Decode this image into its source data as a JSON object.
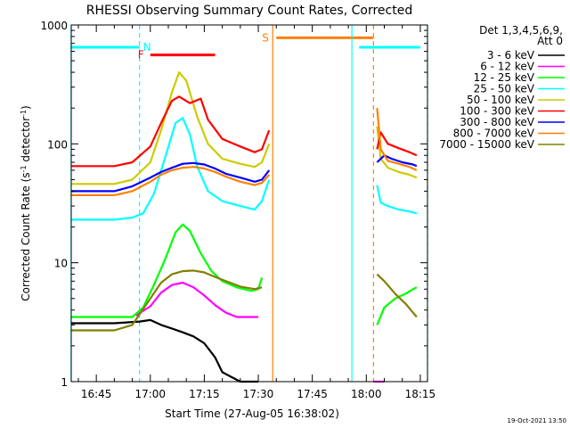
{
  "chart_data": {
    "type": "line",
    "title": "RHESSI Observing Summary Count Rates, Corrected",
    "xlabel": "Start Time (27-Aug-05 16:38:02)",
    "ylabel": "Corrected Count Rate (s⁻¹ detector⁻¹)",
    "ylabel_main": "Corrected Count Rate (s",
    "ylabel_sup1": "-1",
    "ylabel_mid": " detector",
    "ylabel_sup2": "-1",
    "ylabel_end": ")",
    "y_scale": "log",
    "ylim": [
      1,
      1000
    ],
    "xlim": [
      "16:38:02",
      "18:17:00"
    ],
    "x_tick_labels": [
      "16:45",
      "17:00",
      "17:15",
      "17:30",
      "17:45",
      "18:00",
      "18:15"
    ],
    "y_tick_labels": [
      "1",
      "10",
      "100",
      "1000"
    ],
    "legend_header": [
      "Det 1,3,4,5,6,9,",
      "Att 0"
    ],
    "legend_position": "top-right outside plot",
    "timestamp": "19-Oct-2021 13:50",
    "data_gaps": [
      [
        "17:34",
        "17:56"
      ],
      [
        "18:00",
        "18:03"
      ]
    ],
    "annotations": [
      {
        "label": "N",
        "kind": "night",
        "color": "#00ffff"
      },
      {
        "label": "F",
        "kind": "flare",
        "color": "#ff0000"
      },
      {
        "label": "S",
        "kind": "SAA",
        "color": "#ff8000"
      }
    ],
    "bars": [
      {
        "label": "N",
        "start": "16:38",
        "end": "16:57",
        "level": 650,
        "color": "#00ffff"
      },
      {
        "label": "N",
        "start": "17:58",
        "end": "18:15",
        "level": 650,
        "color": "#00ffff"
      },
      {
        "label": "F",
        "start": "17:00",
        "end": "17:18",
        "level": 560,
        "color": "#ff0000"
      },
      {
        "label": "S",
        "start": "17:35",
        "end": "18:02",
        "level": 780,
        "color": "#ff8000"
      }
    ],
    "vlines": [
      {
        "t": "16:38",
        "color": "#00ffff",
        "style": "solid"
      },
      {
        "t": "16:57",
        "color": "#00ffff",
        "style": "dashed"
      },
      {
        "t": "17:34",
        "color": "#ff8000",
        "style": "solid"
      },
      {
        "t": "17:56",
        "color": "#00ffff",
        "style": "solid"
      },
      {
        "t": "18:02",
        "color": "#ff8000",
        "style": "dashed"
      },
      {
        "t": "18:17",
        "color": "#00ffff",
        "style": "dashed"
      }
    ],
    "series": [
      {
        "name": "3 - 6 keV",
        "color": "#000000",
        "segments": [
          [
            [
              "16:38",
              3.1
            ],
            [
              "16:50",
              3.1
            ],
            [
              "16:57",
              3.2
            ],
            [
              "17:00",
              3.3
            ],
            [
              "17:03",
              3.0
            ],
            [
              "17:06",
              2.8
            ],
            [
              "17:09",
              2.6
            ],
            [
              "17:12",
              2.4
            ],
            [
              "17:15",
              2.1
            ],
            [
              "17:18",
              1.6
            ],
            [
              "17:20",
              1.2
            ],
            [
              "17:25",
              1.0
            ],
            [
              "17:30",
              1.0
            ]
          ]
        ]
      },
      {
        "name": "6 - 12 keV",
        "color": "#ff00ff",
        "segments": [
          [
            [
              "16:56",
              3.6
            ],
            [
              "17:00",
              4.3
            ],
            [
              "17:03",
              5.6
            ],
            [
              "17:06",
              6.5
            ],
            [
              "17:09",
              6.8
            ],
            [
              "17:12",
              6.2
            ],
            [
              "17:15",
              5.3
            ],
            [
              "17:18",
              4.4
            ],
            [
              "17:21",
              3.8
            ],
            [
              "17:24",
              3.5
            ],
            [
              "17:30",
              3.5
            ]
          ],
          [
            [
              "18:02",
              1.0
            ],
            [
              "18:05",
              1.0
            ]
          ]
        ]
      },
      {
        "name": "12 - 25 keV",
        "color": "#00ff00",
        "segments": [
          [
            [
              "16:38",
              3.5
            ],
            [
              "16:55",
              3.5
            ],
            [
              "16:58",
              4.2
            ],
            [
              "17:01",
              6.5
            ],
            [
              "17:04",
              10.5
            ],
            [
              "17:07",
              18.0
            ],
            [
              "17:09",
              21.0
            ],
            [
              "17:11",
              18.5
            ],
            [
              "17:14",
              12.0
            ],
            [
              "17:17",
              8.5
            ],
            [
              "17:20",
              7.0
            ],
            [
              "17:24",
              6.2
            ],
            [
              "17:28",
              5.8
            ],
            [
              "17:30",
              6.0
            ],
            [
              "17:31",
              7.5
            ]
          ],
          [
            [
              "18:03",
              3.0
            ],
            [
              "18:05",
              4.2
            ],
            [
              "18:08",
              5.0
            ],
            [
              "18:11",
              5.5
            ],
            [
              "18:13",
              6.0
            ],
            [
              "18:14",
              6.2
            ]
          ]
        ]
      },
      {
        "name": "25 - 50 keV",
        "color": "#00ffff",
        "segments": [
          [
            [
              "16:38",
              23
            ],
            [
              "16:50",
              23
            ],
            [
              "16:55",
              24
            ],
            [
              "16:58",
              26
            ],
            [
              "17:01",
              38
            ],
            [
              "17:04",
              75
            ],
            [
              "17:07",
              150
            ],
            [
              "17:09",
              165
            ],
            [
              "17:11",
              120
            ],
            [
              "17:13",
              65
            ],
            [
              "17:16",
              40
            ],
            [
              "17:20",
              33
            ],
            [
              "17:25",
              30
            ],
            [
              "17:29",
              28
            ],
            [
              "17:31",
              33
            ],
            [
              "17:33",
              50
            ]
          ],
          [
            [
              "18:03",
              45
            ],
            [
              "18:04",
              32
            ],
            [
              "18:06",
              30
            ],
            [
              "18:09",
              28
            ],
            [
              "18:12",
              27
            ],
            [
              "18:14",
              26
            ]
          ]
        ]
      },
      {
        "name": "50 - 100 keV",
        "color": "#cccc00",
        "segments": [
          [
            [
              "16:38",
              46
            ],
            [
              "16:50",
              46
            ],
            [
              "16:55",
              50
            ],
            [
              "17:00",
              70
            ],
            [
              "17:03",
              130
            ],
            [
              "17:06",
              270
            ],
            [
              "17:08",
              400
            ],
            [
              "17:10",
              340
            ],
            [
              "17:13",
              170
            ],
            [
              "17:16",
              100
            ],
            [
              "17:20",
              75
            ],
            [
              "17:25",
              68
            ],
            [
              "17:29",
              64
            ],
            [
              "17:31",
              70
            ],
            [
              "17:33",
              100
            ]
          ],
          [
            [
              "18:03",
              140
            ],
            [
              "18:04",
              75
            ],
            [
              "18:06",
              63
            ],
            [
              "18:09",
              58
            ],
            [
              "18:12",
              55
            ],
            [
              "18:14",
              52
            ]
          ]
        ]
      },
      {
        "name": "100 - 300 keV",
        "color": "#ff0000",
        "segments": [
          [
            [
              "16:38",
              65
            ],
            [
              "16:50",
              65
            ],
            [
              "16:55",
              70
            ],
            [
              "17:00",
              95
            ],
            [
              "17:03",
              150
            ],
            [
              "17:06",
              230
            ],
            [
              "17:08",
              250
            ],
            [
              "17:11",
              220
            ],
            [
              "17:14",
              240
            ],
            [
              "17:16",
              160
            ],
            [
              "17:20",
              110
            ],
            [
              "17:25",
              95
            ],
            [
              "17:29",
              85
            ],
            [
              "17:31",
              90
            ],
            [
              "17:33",
              130
            ]
          ],
          [
            [
              "18:03",
              90
            ],
            [
              "18:04",
              125
            ],
            [
              "18:06",
              100
            ],
            [
              "18:09",
              92
            ],
            [
              "18:12",
              85
            ],
            [
              "18:14",
              80
            ]
          ]
        ]
      },
      {
        "name": "300 - 800 keV",
        "color": "#0000ff",
        "segments": [
          [
            [
              "16:38",
              40
            ],
            [
              "16:50",
              40
            ],
            [
              "16:55",
              44
            ],
            [
              "17:00",
              52
            ],
            [
              "17:03",
              58
            ],
            [
              "17:06",
              63
            ],
            [
              "17:09",
              68
            ],
            [
              "17:12",
              69
            ],
            [
              "17:15",
              67
            ],
            [
              "17:18",
              62
            ],
            [
              "17:21",
              56
            ],
            [
              "17:25",
              52
            ],
            [
              "17:29",
              48
            ],
            [
              "17:31",
              50
            ],
            [
              "17:33",
              60
            ]
          ],
          [
            [
              "18:03",
              70
            ],
            [
              "18:05",
              80
            ],
            [
              "18:07",
              75
            ],
            [
              "18:10",
              70
            ],
            [
              "18:13",
              67
            ],
            [
              "18:14",
              65
            ]
          ]
        ]
      },
      {
        "name": "800 - 7000 keV",
        "color": "#ff8000",
        "segments": [
          [
            [
              "16:38",
              37
            ],
            [
              "16:50",
              37
            ],
            [
              "16:55",
              40
            ],
            [
              "17:00",
              48
            ],
            [
              "17:03",
              55
            ],
            [
              "17:06",
              60
            ],
            [
              "17:09",
              63
            ],
            [
              "17:12",
              64
            ],
            [
              "17:15",
              62
            ],
            [
              "17:18",
              58
            ],
            [
              "17:21",
              53
            ],
            [
              "17:25",
              48
            ],
            [
              "17:29",
              45
            ],
            [
              "17:31",
              47
            ],
            [
              "17:33",
              55
            ]
          ],
          [
            [
              "18:03",
              200
            ],
            [
              "18:04",
              90
            ],
            [
              "18:06",
              72
            ],
            [
              "18:09",
              68
            ],
            [
              "18:12",
              64
            ],
            [
              "18:14",
              60
            ]
          ]
        ]
      },
      {
        "name": "7000 - 15000 keV",
        "color": "#808000",
        "segments": [
          [
            [
              "16:38",
              2.7
            ],
            [
              "16:50",
              2.7
            ],
            [
              "16:55",
              3.0
            ],
            [
              "17:00",
              5.0
            ],
            [
              "17:03",
              6.8
            ],
            [
              "17:06",
              8.0
            ],
            [
              "17:09",
              8.5
            ],
            [
              "17:12",
              8.6
            ],
            [
              "17:15",
              8.3
            ],
            [
              "17:18",
              7.6
            ],
            [
              "17:21",
              7.0
            ],
            [
              "17:25",
              6.3
            ],
            [
              "17:29",
              6.0
            ],
            [
              "17:31",
              6.2
            ]
          ],
          [
            [
              "18:03",
              8.0
            ],
            [
              "18:05",
              7.0
            ],
            [
              "18:08",
              5.5
            ],
            [
              "18:11",
              4.5
            ],
            [
              "18:13",
              3.8
            ],
            [
              "18:14",
              3.5
            ]
          ]
        ]
      }
    ]
  }
}
